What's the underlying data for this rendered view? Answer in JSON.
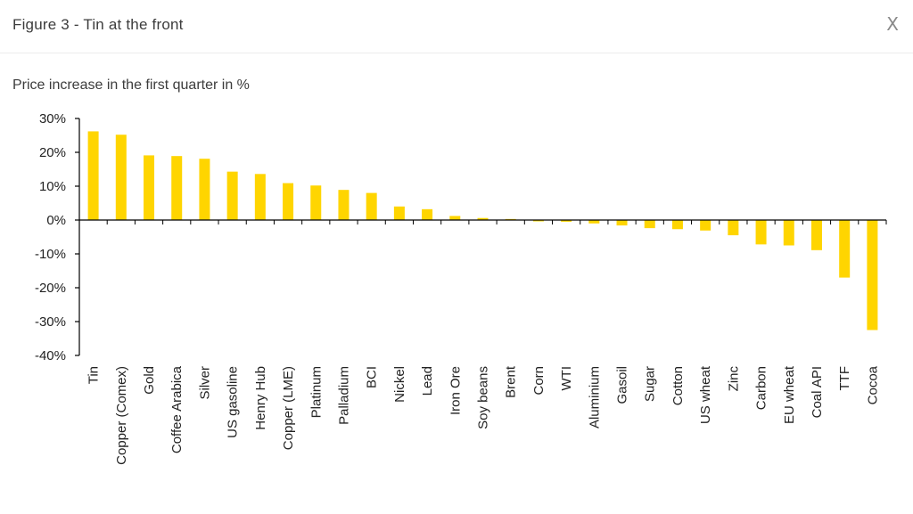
{
  "dialog": {
    "title": "Figure 3 - Tin at the front",
    "close_label": "X"
  },
  "chart_data": {
    "type": "bar",
    "title": "Price increase in the first quarter in %",
    "categories": [
      "Tin",
      "Copper (Comex)",
      "Gold",
      "Coffee Arabica",
      "Silver",
      "US gasoline",
      "Henry Hub",
      "Copper (LME)",
      "Platinum",
      "Palladium",
      "BCI",
      "Nickel",
      "Lead",
      "Iron Ore",
      "Soy beans",
      "Brent",
      "Corn",
      "WTI",
      "Aluminium",
      "Gasoil",
      "Sugar",
      "Cotton",
      "US wheat",
      "Zinc",
      "Carbon",
      "EU wheat",
      "Coal API",
      "TTF",
      "Cocoa"
    ],
    "values": [
      26.2,
      25.2,
      19.1,
      18.9,
      18.1,
      14.3,
      13.6,
      10.9,
      10.2,
      8.9,
      8.0,
      4.0,
      3.2,
      1.2,
      0.6,
      0.3,
      -0.4,
      -0.5,
      -1.0,
      -1.6,
      -2.4,
      -2.7,
      -3.1,
      -4.5,
      -7.2,
      -7.5,
      -8.9,
      -17.0,
      -32.5
    ],
    "yticks": [
      "30%",
      "20%",
      "10%",
      "0%",
      "-10%",
      "-20%",
      "-30%",
      "-40%"
    ],
    "ylim": [
      -40,
      30
    ],
    "bar_color": "#FFD500",
    "grid": false,
    "legend": "none"
  }
}
